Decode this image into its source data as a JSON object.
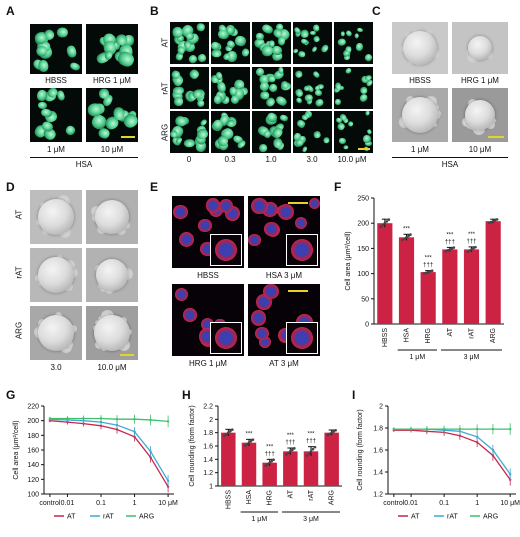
{
  "panels": {
    "A": {
      "letter": "A",
      "labels": [
        "HBSS",
        "HRG 1 μM",
        "1 μM",
        "10 μM"
      ],
      "group": "HSA"
    },
    "B": {
      "letter": "B",
      "rows": [
        "AT",
        "rAT",
        "ARG"
      ],
      "cols": [
        "0",
        "0.3",
        "1.0",
        "3.0",
        "10.0 μM"
      ]
    },
    "C": {
      "letter": "C",
      "labels": [
        "HBSS",
        "HRG 1 μM",
        "1 μM",
        "10 μM"
      ],
      "group": "HSA"
    },
    "D": {
      "letter": "D",
      "rows": [
        "AT",
        "rAT",
        "ARG"
      ],
      "cols": [
        "3.0",
        "10.0 μM"
      ]
    },
    "E": {
      "letter": "E",
      "labels": [
        "HBSS",
        "HSA 3 μM",
        "HRG 1 μM",
        "AT 3 μM"
      ]
    },
    "F": {
      "letter": "F"
    },
    "G": {
      "letter": "G"
    },
    "H": {
      "letter": "H"
    },
    "I": {
      "letter": "I"
    }
  },
  "colors": {
    "bar": "#cc2244",
    "at": "#c8274a",
    "rat": "#3fa9d4",
    "arg": "#3fbf6f"
  },
  "chart_data": [
    {
      "id": "F",
      "type": "bar",
      "ylabel": "Cell area (μm²/cell)",
      "categories": [
        "HBSS",
        "HSA",
        "HRG",
        "AT",
        "rAT",
        "ARG"
      ],
      "values": [
        200,
        172,
        103,
        148,
        148,
        204
      ],
      "errors": [
        8,
        6,
        3,
        4,
        5,
        4
      ],
      "ylim": [
        0,
        250
      ],
      "yticks": [
        0,
        50,
        100,
        150,
        200,
        250
      ],
      "sig": [
        "",
        "***",
        "***\n†††",
        "***\n†††",
        "***\n†††",
        ""
      ],
      "group_labels": [
        "1 μM",
        "3 μM"
      ]
    },
    {
      "id": "G",
      "type": "line",
      "ylabel": "Cell area (μm²/cell)",
      "xticklabels": [
        "control",
        "0.01",
        "0.1",
        "1",
        "10 μM"
      ],
      "x": [
        0.003,
        0.01,
        0.03,
        0.1,
        0.3,
        1,
        3,
        10
      ],
      "ylim": [
        100,
        220
      ],
      "yticks": [
        100,
        120,
        140,
        160,
        180,
        200,
        220
      ],
      "series": [
        {
          "name": "AT",
          "values": [
            200,
            198,
            196,
            193,
            188,
            178,
            150,
            110
          ]
        },
        {
          "name": "rAT",
          "values": [
            202,
            201,
            200,
            198,
            194,
            185,
            158,
            118
          ]
        },
        {
          "name": "ARG",
          "values": [
            203,
            203,
            203,
            203,
            202,
            202,
            201,
            199
          ]
        }
      ]
    },
    {
      "id": "H",
      "type": "bar",
      "ylabel": "Cell rounding (form factor)",
      "categories": [
        "HBSS",
        "HSA",
        "HRG",
        "AT",
        "rAT",
        "ARG"
      ],
      "values": [
        1.8,
        1.65,
        1.35,
        1.52,
        1.52,
        1.8
      ],
      "errors": [
        0.05,
        0.05,
        0.05,
        0.05,
        0.07,
        0.04
      ],
      "ylim": [
        1.0,
        2.2
      ],
      "yticks": [
        1.0,
        1.2,
        1.4,
        1.6,
        1.8,
        2.0,
        2.2
      ],
      "sig": [
        "",
        "***",
        "***\n†††",
        "***\n†††",
        "***\n†††",
        ""
      ],
      "group_labels": [
        "1 μM",
        "3 μM"
      ]
    },
    {
      "id": "I",
      "type": "line",
      "ylabel": "Cell rounding (form factor)",
      "xticklabels": [
        "control",
        "0.01",
        "0.1",
        "1",
        "10 μM"
      ],
      "x": [
        0.003,
        0.01,
        0.03,
        0.1,
        0.3,
        1,
        3,
        10
      ],
      "ylim": [
        1.2,
        2.0
      ],
      "yticks": [
        1.2,
        1.4,
        1.6,
        1.8,
        2.0
      ],
      "series": [
        {
          "name": "AT",
          "values": [
            1.78,
            1.78,
            1.77,
            1.76,
            1.73,
            1.67,
            1.55,
            1.33
          ]
        },
        {
          "name": "rAT",
          "values": [
            1.79,
            1.79,
            1.79,
            1.78,
            1.77,
            1.72,
            1.6,
            1.38
          ]
        },
        {
          "name": "ARG",
          "values": [
            1.79,
            1.79,
            1.79,
            1.79,
            1.79,
            1.79,
            1.79,
            1.79
          ]
        }
      ]
    }
  ]
}
